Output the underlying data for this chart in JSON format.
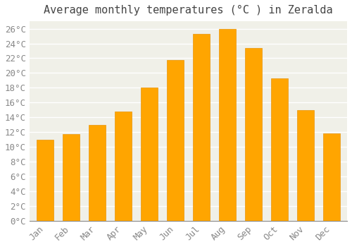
{
  "months": [
    "Jan",
    "Feb",
    "Mar",
    "Apr",
    "May",
    "Jun",
    "Jul",
    "Aug",
    "Sep",
    "Oct",
    "Nov",
    "Dec"
  ],
  "values": [
    11.0,
    11.7,
    13.0,
    14.8,
    18.0,
    21.8,
    25.3,
    26.0,
    23.4,
    19.3,
    15.0,
    11.8
  ],
  "bar_color_top": "#FFA500",
  "bar_color_bottom": "#FFB733",
  "bar_edge_color": "#E8940A",
  "title": "Average monthly temperatures (°C ) in Zeralda",
  "ylim": [
    0,
    27
  ],
  "ytick_max": 26,
  "ytick_step": 2,
  "figure_bg": "#ffffff",
  "plot_bg": "#f0f0e8",
  "grid_color": "#ffffff",
  "title_fontsize": 11,
  "tick_fontsize": 9,
  "title_color": "#444444",
  "tick_color": "#888888"
}
